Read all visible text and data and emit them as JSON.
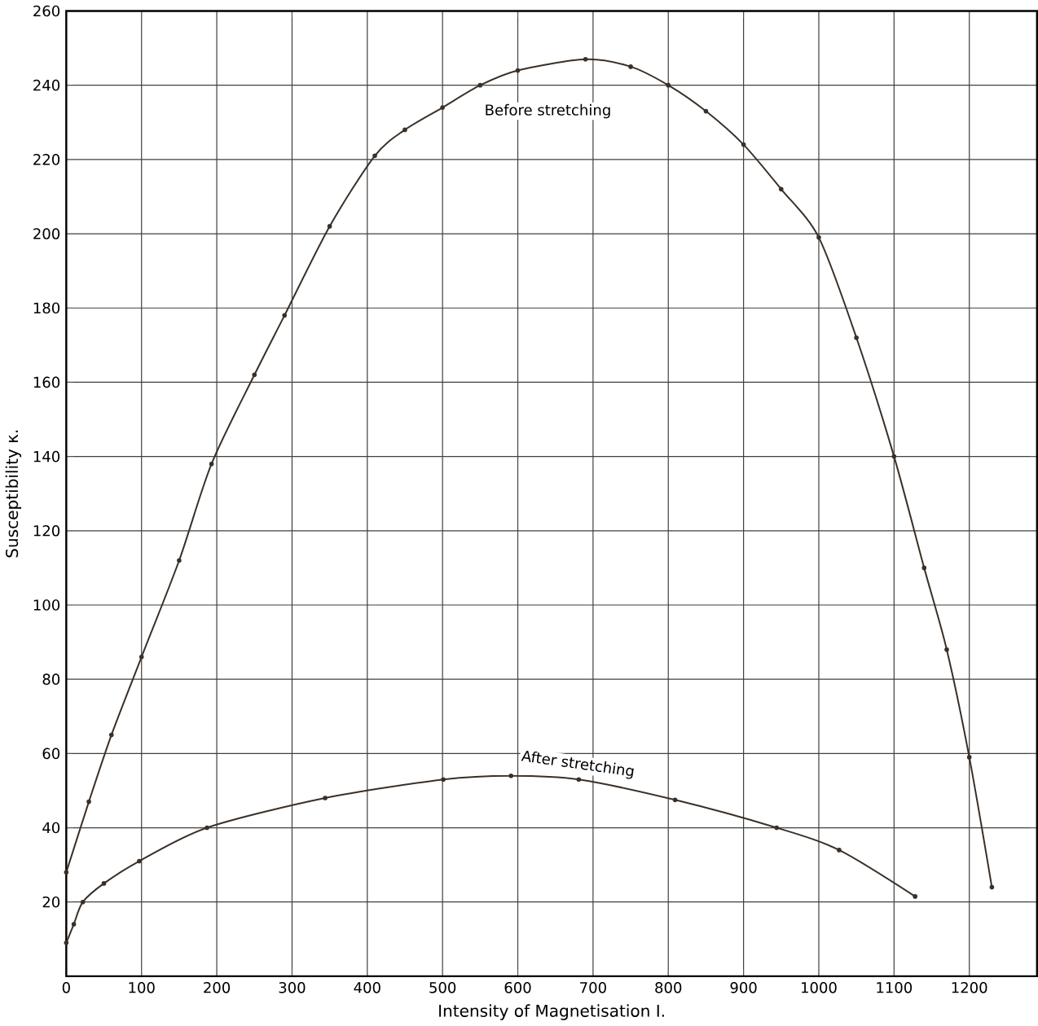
{
  "chart_data": {
    "type": "line",
    "xlabel": "Intensity of Magnetisation I.",
    "ylabel": "Susceptibility κ.",
    "xlim": [
      0,
      1290
    ],
    "ylim": [
      0,
      260
    ],
    "xticks": [
      0,
      100,
      200,
      300,
      400,
      500,
      600,
      700,
      800,
      900,
      1000,
      1100,
      1200
    ],
    "yticks": [
      20,
      40,
      60,
      80,
      100,
      120,
      140,
      160,
      180,
      200,
      220,
      240,
      260
    ],
    "grid": true,
    "marker": "circle",
    "line_style": "solid",
    "legend": false,
    "series": [
      {
        "name": "Before stretching",
        "color": "#3a3028",
        "x": [
          0,
          30,
          60,
          100,
          150,
          193,
          250,
          290,
          350,
          410,
          450,
          500,
          550,
          600,
          690,
          750,
          800,
          850,
          900,
          950,
          1000,
          1050,
          1100,
          1140,
          1170,
          1200,
          1230
        ],
        "values": [
          28,
          47,
          65,
          86,
          112,
          138,
          162,
          178,
          202,
          221,
          228,
          234,
          240,
          244,
          247,
          245,
          240,
          233,
          224,
          212,
          199,
          172,
          140,
          110,
          88,
          59,
          24
        ]
      },
      {
        "name": "After stretching",
        "color": "#3a3028",
        "x": [
          0,
          10,
          22,
          50,
          97,
          187,
          344,
          501,
          591,
          681,
          809,
          944,
          1027,
          1128
        ],
        "values": [
          9,
          14,
          20,
          25,
          31,
          40,
          48,
          53,
          54,
          53,
          47.5,
          40,
          34,
          21.5
        ]
      }
    ]
  }
}
